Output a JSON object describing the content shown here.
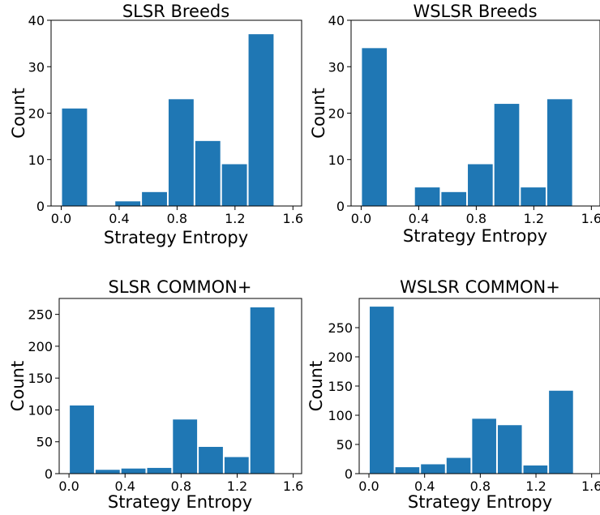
{
  "chart_data": [
    {
      "type": "bar",
      "title": "SLSR Breeds",
      "xlabel": "Strategy Entropy",
      "ylabel": "Count",
      "xlim": [
        -0.07,
        1.66
      ],
      "ylim": [
        0,
        40
      ],
      "xticks": [
        0.0,
        0.4,
        0.8,
        1.2,
        1.6
      ],
      "xtick_labels": [
        "0.0",
        "0.4",
        "0.8",
        "1.2",
        "1.6"
      ],
      "yticks": [
        0,
        10,
        20,
        30,
        40
      ],
      "ytick_labels": [
        "0",
        "10",
        "20",
        "30",
        "40"
      ],
      "bar_width": 0.184,
      "bars": [
        {
          "x": 0.092,
          "value": 21
        },
        {
          "x": 0.276,
          "value": 0
        },
        {
          "x": 0.46,
          "value": 1
        },
        {
          "x": 0.644,
          "value": 3
        },
        {
          "x": 0.828,
          "value": 23
        },
        {
          "x": 1.012,
          "value": 14
        },
        {
          "x": 1.196,
          "value": 9
        },
        {
          "x": 1.38,
          "value": 37
        }
      ],
      "bar_color": "#1f77b4",
      "grid": false
    },
    {
      "type": "bar",
      "title": "WSLSR Breeds",
      "xlabel": "Strategy Entropy",
      "ylabel": "Count",
      "xlim": [
        -0.07,
        1.66
      ],
      "ylim": [
        0,
        40
      ],
      "xticks": [
        0.0,
        0.4,
        0.8,
        1.2,
        1.6
      ],
      "xtick_labels": [
        "0.0",
        "0.4",
        "0.8",
        "1.2",
        "1.6"
      ],
      "yticks": [
        0,
        10,
        20,
        30,
        40
      ],
      "ytick_labels": [
        "0",
        "10",
        "20",
        "30",
        "40"
      ],
      "bar_width": 0.184,
      "bars": [
        {
          "x": 0.092,
          "value": 34
        },
        {
          "x": 0.276,
          "value": 0
        },
        {
          "x": 0.46,
          "value": 4
        },
        {
          "x": 0.644,
          "value": 3
        },
        {
          "x": 0.828,
          "value": 9
        },
        {
          "x": 1.012,
          "value": 22
        },
        {
          "x": 1.196,
          "value": 4
        },
        {
          "x": 1.38,
          "value": 23
        }
      ],
      "bar_color": "#1f77b4",
      "grid": false
    },
    {
      "type": "bar",
      "title": "SLSR COMMON+",
      "xlabel": "Strategy Entropy",
      "ylabel": "Count",
      "xlim": [
        -0.07,
        1.66
      ],
      "ylim": [
        0,
        275
      ],
      "xticks": [
        0.0,
        0.4,
        0.8,
        1.2,
        1.6
      ],
      "xtick_labels": [
        "0.0",
        "0.4",
        "0.8",
        "1.2",
        "1.6"
      ],
      "yticks": [
        0,
        50,
        100,
        150,
        200,
        250
      ],
      "ytick_labels": [
        "0",
        "50",
        "100",
        "150",
        "200",
        "250"
      ],
      "bar_width": 0.184,
      "bars": [
        {
          "x": 0.092,
          "value": 107
        },
        {
          "x": 0.276,
          "value": 6
        },
        {
          "x": 0.46,
          "value": 8
        },
        {
          "x": 0.644,
          "value": 9
        },
        {
          "x": 0.828,
          "value": 85
        },
        {
          "x": 1.012,
          "value": 42
        },
        {
          "x": 1.196,
          "value": 26
        },
        {
          "x": 1.38,
          "value": 261
        }
      ],
      "bar_color": "#1f77b4",
      "grid": false
    },
    {
      "type": "bar",
      "title": "WSLSR COMMON+",
      "xlabel": "Strategy Entropy",
      "ylabel": "Count",
      "xlim": [
        -0.07,
        1.66
      ],
      "ylim": [
        0,
        300
      ],
      "xticks": [
        0.0,
        0.4,
        0.8,
        1.2,
        1.6
      ],
      "xtick_labels": [
        "0.0",
        "0.4",
        "0.8",
        "1.2",
        "1.6"
      ],
      "yticks": [
        0,
        50,
        100,
        150,
        200,
        250
      ],
      "ytick_labels": [
        "0",
        "50",
        "100",
        "150",
        "200",
        "250"
      ],
      "bar_width": 0.184,
      "bars": [
        {
          "x": 0.092,
          "value": 286
        },
        {
          "x": 0.276,
          "value": 11
        },
        {
          "x": 0.46,
          "value": 16
        },
        {
          "x": 0.644,
          "value": 27
        },
        {
          "x": 0.828,
          "value": 94
        },
        {
          "x": 1.012,
          "value": 83
        },
        {
          "x": 1.196,
          "value": 14
        },
        {
          "x": 1.38,
          "value": 142
        }
      ],
      "bar_color": "#1f77b4",
      "grid": false
    }
  ]
}
